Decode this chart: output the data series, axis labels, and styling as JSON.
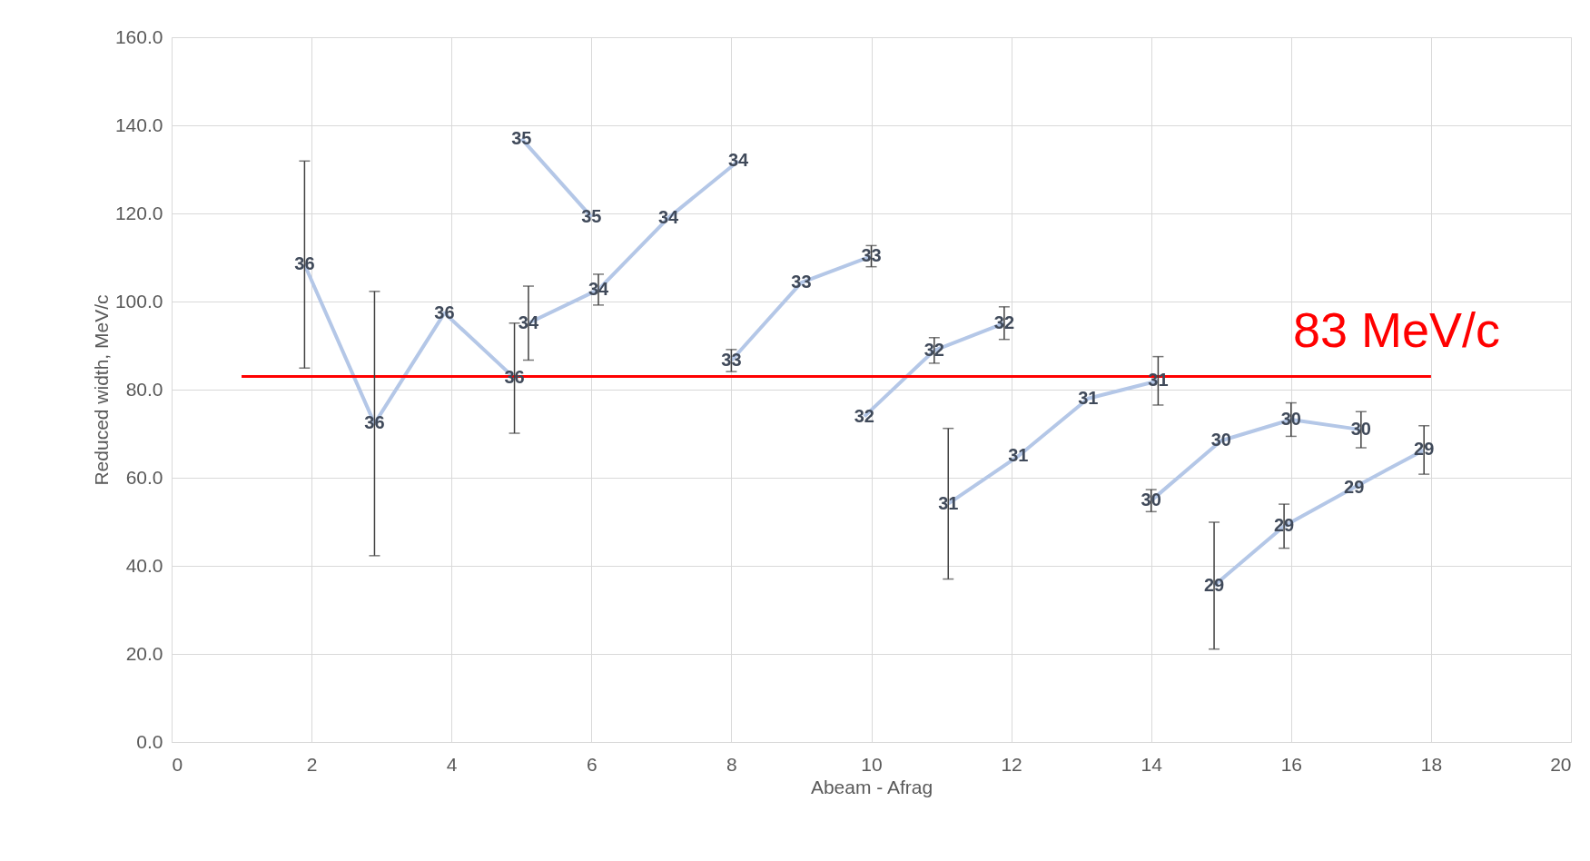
{
  "chart_data": {
    "type": "line",
    "xlabel": "Abeam - Afrag",
    "ylabel": "Reduced width, MeV/c",
    "xlim": [
      0,
      20
    ],
    "xticks": [
      0,
      2,
      4,
      6,
      8,
      10,
      12,
      14,
      16,
      18,
      20
    ],
    "ylim": [
      0,
      160
    ],
    "yticks": [
      {
        "value": 0,
        "label": "0.0"
      },
      {
        "value": 20,
        "label": "20.0"
      },
      {
        "value": 40,
        "label": "40.0"
      },
      {
        "value": 60,
        "label": "60.0"
      },
      {
        "value": 80,
        "label": "80.0"
      },
      {
        "value": 100,
        "label": "100.0"
      },
      {
        "value": 120,
        "label": "120.0"
      },
      {
        "value": 140,
        "label": "140.0"
      },
      {
        "value": 160,
        "label": "160.0"
      }
    ],
    "grid": true,
    "marker": "none",
    "line_style": "solid",
    "series": [
      {
        "name": "36",
        "color": "#b4c7e7",
        "x": [
          1.9,
          2.9,
          3.9,
          4.9
        ],
        "values": [
          108.4,
          72.3,
          97.4,
          82.6
        ],
        "errors": [
          23.5,
          30,
          null,
          12.5
        ]
      },
      {
        "name": "35",
        "color": "#b4c7e7",
        "x": [
          5.0,
          6.0
        ],
        "values": [
          137.0,
          119.2
        ],
        "errors": [
          null,
          null
        ]
      },
      {
        "name": "34",
        "color": "#b4c7e7",
        "x": [
          5.1,
          6.1,
          7.1,
          8.1
        ],
        "values": [
          95.1,
          102.7,
          119.0,
          131.9
        ],
        "errors": [
          8.4,
          3.5,
          null,
          null
        ]
      },
      {
        "name": "33",
        "color": "#b4c7e7",
        "x": [
          8.0,
          9.0,
          10.0
        ],
        "values": [
          86.6,
          104.3,
          110.3
        ],
        "errors": [
          2.5,
          null,
          2.4
        ]
      },
      {
        "name": "32",
        "color": "#b4c7e7",
        "x": [
          9.9,
          10.9,
          11.9
        ],
        "values": [
          73.9,
          88.9,
          95.1
        ],
        "errors": [
          null,
          2.9,
          3.7
        ]
      },
      {
        "name": "31",
        "color": "#b4c7e7",
        "x": [
          11.1,
          12.1,
          13.1,
          14.1
        ],
        "values": [
          54.1,
          64.9,
          78.0,
          82.0
        ],
        "errors": [
          17.1,
          null,
          null,
          5.5
        ]
      },
      {
        "name": "30",
        "color": "#b4c7e7",
        "x": [
          14.0,
          15.0,
          16.0,
          17.0
        ],
        "values": [
          54.8,
          68.4,
          73.2,
          70.9
        ],
        "errors": [
          2.5,
          null,
          3.8,
          4.1
        ]
      },
      {
        "name": "29",
        "color": "#b4c7e7",
        "x": [
          14.9,
          15.9,
          16.9,
          17.9
        ],
        "values": [
          35.5,
          49.0,
          57.8,
          66.3
        ],
        "errors": [
          14.4,
          5.0,
          null,
          5.5
        ]
      },
      {
        "color": "#ff0000",
        "x": [
          1,
          18
        ],
        "values": [
          83,
          83
        ]
      }
    ],
    "annotations": [
      "83 MeV/c"
    ]
  }
}
